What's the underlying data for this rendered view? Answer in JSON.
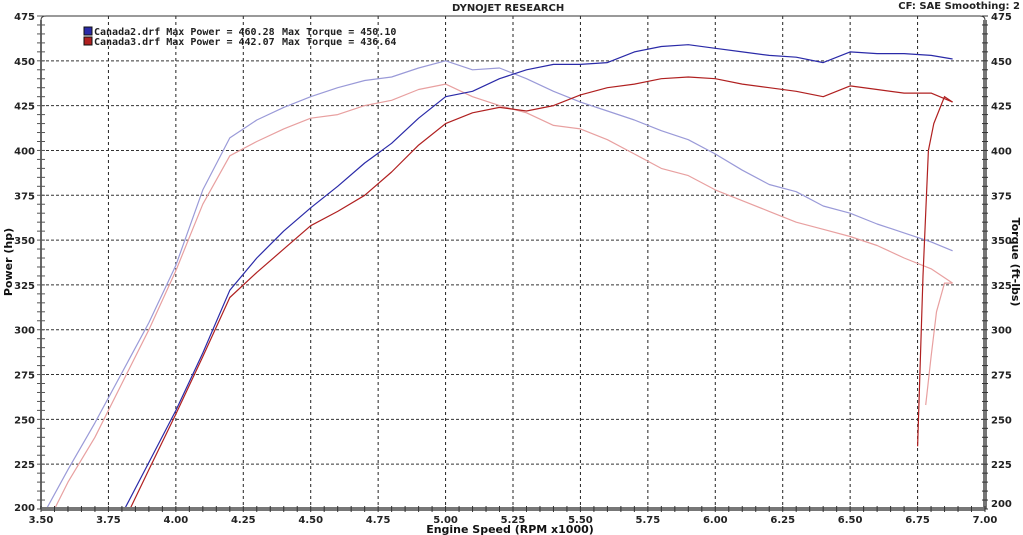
{
  "header": {
    "title": "DYNOJET RESEARCH",
    "settings": "CF: SAE  Smoothing: 2"
  },
  "legend": [
    {
      "file": "Canada2.drf",
      "label": "Canada2.drf Max Power = 460.28",
      "torque_label": "Max Torque = 450.10",
      "color": "#2a2aa8",
      "light_color": "#9a9ad8"
    },
    {
      "file": "Canada3.drf",
      "label": "Canada3.drf Max Power = 442.07",
      "torque_label": "Max Torque = 436.64",
      "color": "#b02020",
      "light_color": "#e8a0a0"
    }
  ],
  "chart_data": {
    "type": "line",
    "title": "DYNOJET RESEARCH",
    "subtitle": "CF: SAE  Smoothing: 2",
    "xlabel": "Engine Speed (RPM x1000)",
    "ylabel": "Power (hp)",
    "y2label": "Torque (ft-lbs)",
    "xlim": [
      3.5,
      7.0
    ],
    "ylim": [
      200,
      475
    ],
    "y2lim": [
      200,
      475
    ],
    "x_ticks": [
      "3.50",
      "3.75",
      "4.00",
      "4.25",
      "4.50",
      "4.75",
      "5.00",
      "5.25",
      "5.50",
      "5.75",
      "6.00",
      "6.25",
      "6.50",
      "6.75",
      "7.00"
    ],
    "y_ticks": [
      "200",
      "225",
      "250",
      "275",
      "300",
      "325",
      "350",
      "375",
      "400",
      "425",
      "450",
      "475"
    ],
    "grid": true,
    "legend_position": "top-left",
    "series": [
      {
        "name": "Canada2.drf Power (hp)",
        "axis": "left",
        "color": "#2a2aa8",
        "max": 460.28,
        "x": [
          3.81,
          3.9,
          4.0,
          4.1,
          4.2,
          4.3,
          4.4,
          4.5,
          4.6,
          4.7,
          4.8,
          4.9,
          5.0,
          5.1,
          5.2,
          5.3,
          5.4,
          5.5,
          5.6,
          5.7,
          5.8,
          5.9,
          6.0,
          6.1,
          6.2,
          6.3,
          6.4,
          6.5,
          6.6,
          6.7,
          6.8,
          6.88
        ],
        "y": [
          200,
          226,
          255,
          287,
          322,
          340,
          355,
          368,
          380,
          393,
          404,
          418,
          430,
          433,
          440,
          445,
          448,
          448,
          449,
          455,
          458,
          459,
          457,
          455,
          453,
          452,
          449,
          455,
          454,
          454,
          453,
          451
        ]
      },
      {
        "name": "Canada2.drf Torque (ft-lbs)",
        "axis": "right",
        "color": "#9a9ad8",
        "max": 450.1,
        "x": [
          3.52,
          3.6,
          3.7,
          3.8,
          3.9,
          4.0,
          4.1,
          4.2,
          4.3,
          4.4,
          4.5,
          4.6,
          4.7,
          4.8,
          4.9,
          5.0,
          5.1,
          5.2,
          5.3,
          5.4,
          5.5,
          5.6,
          5.7,
          5.8,
          5.9,
          6.0,
          6.1,
          6.2,
          6.3,
          6.4,
          6.5,
          6.6,
          6.7,
          6.8,
          6.88
        ],
        "y": [
          200,
          222,
          248,
          276,
          304,
          336,
          378,
          407,
          417,
          424,
          430,
          435,
          439,
          441,
          446,
          450,
          445,
          446,
          440,
          433,
          427,
          422,
          417,
          411,
          406,
          398,
          389,
          381,
          377,
          369,
          365,
          359,
          354,
          349,
          344
        ]
      },
      {
        "name": "Canada3.drf Power (hp)",
        "axis": "left",
        "color": "#b02020",
        "max": 442.07,
        "x": [
          3.83,
          3.9,
          4.0,
          4.1,
          4.2,
          4.3,
          4.4,
          4.5,
          4.6,
          4.7,
          4.8,
          4.9,
          5.0,
          5.1,
          5.2,
          5.3,
          5.4,
          5.5,
          5.6,
          5.7,
          5.8,
          5.9,
          6.0,
          6.1,
          6.2,
          6.3,
          6.4,
          6.5,
          6.6,
          6.7,
          6.8,
          6.88
        ],
        "y": [
          200,
          222,
          253,
          285,
          318,
          332,
          345,
          358,
          366,
          375,
          388,
          403,
          415,
          421,
          424,
          422,
          425,
          431,
          435,
          437,
          440,
          441,
          440,
          437,
          435,
          433,
          430,
          436,
          434,
          432,
          432,
          427
        ],
        "tail": {
          "x": [
            6.88,
            6.85,
            6.81,
            6.79,
            6.77,
            6.75
          ],
          "y": [
            427,
            430,
            415,
            400,
            330,
            235
          ]
        }
      },
      {
        "name": "Canada3.drf Torque (ft-lbs)",
        "axis": "right",
        "color": "#e8a0a0",
        "max": 436.64,
        "x": [
          3.55,
          3.6,
          3.7,
          3.8,
          3.9,
          4.0,
          4.1,
          4.2,
          4.3,
          4.4,
          4.5,
          4.6,
          4.7,
          4.8,
          4.9,
          5.0,
          5.1,
          5.2,
          5.3,
          5.4,
          5.5,
          5.6,
          5.7,
          5.8,
          5.9,
          6.0,
          6.1,
          6.2,
          6.3,
          6.4,
          6.5,
          6.6,
          6.7,
          6.8,
          6.88
        ],
        "y": [
          200,
          215,
          240,
          270,
          300,
          333,
          370,
          397,
          405,
          412,
          418,
          420,
          425,
          428,
          434,
          437,
          430,
          425,
          421,
          414,
          412,
          406,
          398,
          390,
          386,
          378,
          372,
          366,
          360,
          356,
          352,
          347,
          340,
          334,
          326
        ],
        "tail": {
          "x": [
            6.88,
            6.85,
            6.82,
            6.8,
            6.78
          ],
          "y": [
            326,
            326,
            310,
            285,
            258
          ]
        }
      }
    ]
  }
}
